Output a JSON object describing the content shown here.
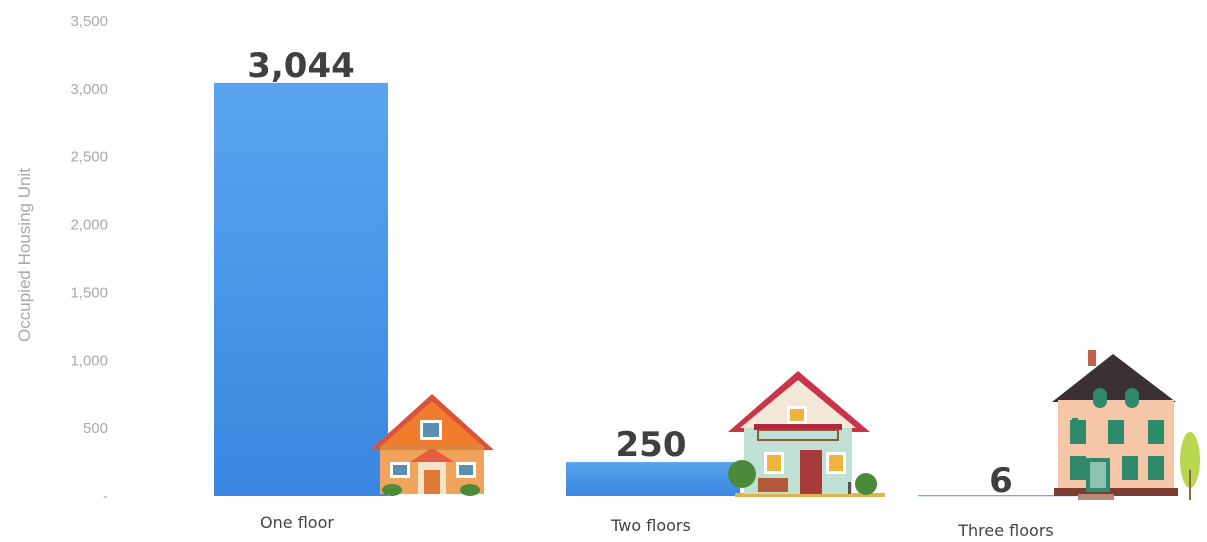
{
  "chart_data": {
    "type": "bar",
    "ylabel": "Occupied Housing Unit",
    "ylim": [
      0,
      3500
    ],
    "yticks": [
      "-",
      "500",
      "1,000",
      "1,500",
      "2,000",
      "2,500",
      "3,000",
      "3,500"
    ],
    "categories": [
      "One floor",
      "Two floors",
      "Three floors"
    ],
    "values": [
      3044,
      250,
      6
    ],
    "data_labels": [
      "3,044",
      "250",
      "6"
    ],
    "grid": false,
    "legend": "none"
  },
  "colors": {
    "bar_top": "#5aa5ef",
    "bar_bottom": "#3a86e0",
    "text": "#404040",
    "tick": "#a9a9a9"
  },
  "icons": [
    "one-floor-house-icon",
    "two-floor-house-icon",
    "three-floor-house-icon",
    "tree-icon"
  ]
}
